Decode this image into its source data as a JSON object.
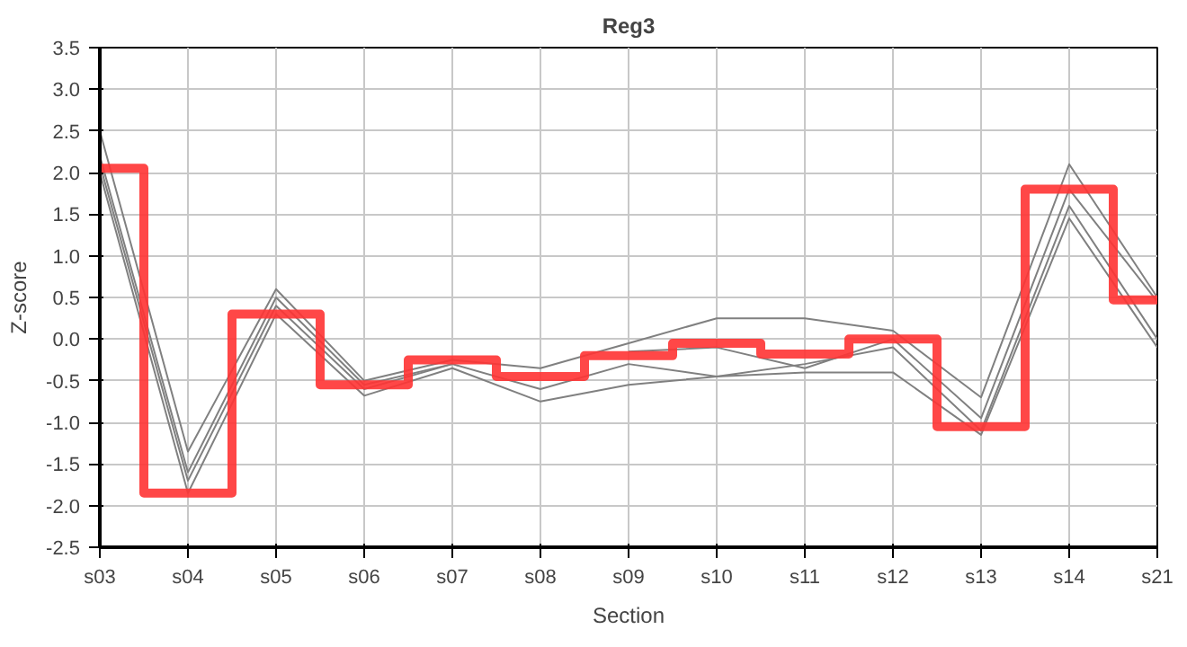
{
  "chart_data": {
    "type": "line",
    "title": "Reg3",
    "xlabel": "Section",
    "ylabel": "Z-score",
    "categories": [
      "s03",
      "s04",
      "s05",
      "s06",
      "s07",
      "s08",
      "s09",
      "s10",
      "s11",
      "s12",
      "s13",
      "s14",
      "s21"
    ],
    "series": [
      {
        "color": "#808080",
        "values": [
          2.5,
          -1.35,
          0.6,
          -0.5,
          -0.25,
          -0.35,
          -0.05,
          0.25,
          0.25,
          0.1,
          -0.7,
          2.1,
          0.5
        ]
      },
      {
        "color": "#808080",
        "values": [
          2.2,
          -1.6,
          0.5,
          -0.55,
          -0.3,
          null,
          -0.15,
          -0.1,
          -0.35,
          0.0,
          -0.95,
          1.8,
          0.45
        ]
      },
      {
        "color": "#808080",
        "values": [
          2.1,
          -1.7,
          0.4,
          -0.6,
          -0.3,
          -0.6,
          -0.3,
          -0.45,
          -0.3,
          -0.1,
          -1.1,
          1.6,
          0.0
        ]
      },
      {
        "color": "#808080",
        "values": [
          2.0,
          -1.85,
          0.3,
          -0.68,
          -0.35,
          -0.75,
          -0.55,
          -0.45,
          -0.4,
          -0.4,
          -1.15,
          1.45,
          -0.1
        ]
      },
      {
        "type": "step",
        "color": "#ff3333",
        "values": [
          2.05,
          -1.85,
          0.3,
          -0.55,
          -0.25,
          -0.45,
          -0.2,
          -0.05,
          -0.18,
          0.0,
          -1.05,
          1.8,
          0.47
        ]
      }
    ],
    "ylim": [
      -2.5,
      3.5
    ],
    "yticks": [
      {
        "value": -2.5,
        "label": "-2.5"
      },
      {
        "value": -2,
        "label": "-2.0"
      },
      {
        "value": -1.5,
        "label": "-1.5"
      },
      {
        "value": -1,
        "label": "-1.0"
      },
      {
        "value": -0.5,
        "label": "-0.5"
      },
      {
        "value": 0,
        "label": "0.0"
      },
      {
        "value": 0.5,
        "label": "0.5"
      },
      {
        "value": 1,
        "label": "1.0"
      },
      {
        "value": 1.5,
        "label": "1.5"
      },
      {
        "value": 2,
        "label": "2.0"
      },
      {
        "value": 2.5,
        "label": "2.5"
      },
      {
        "value": 3,
        "label": "3.0"
      },
      {
        "value": 3.5,
        "label": "3.5"
      }
    ],
    "grid": true
  }
}
